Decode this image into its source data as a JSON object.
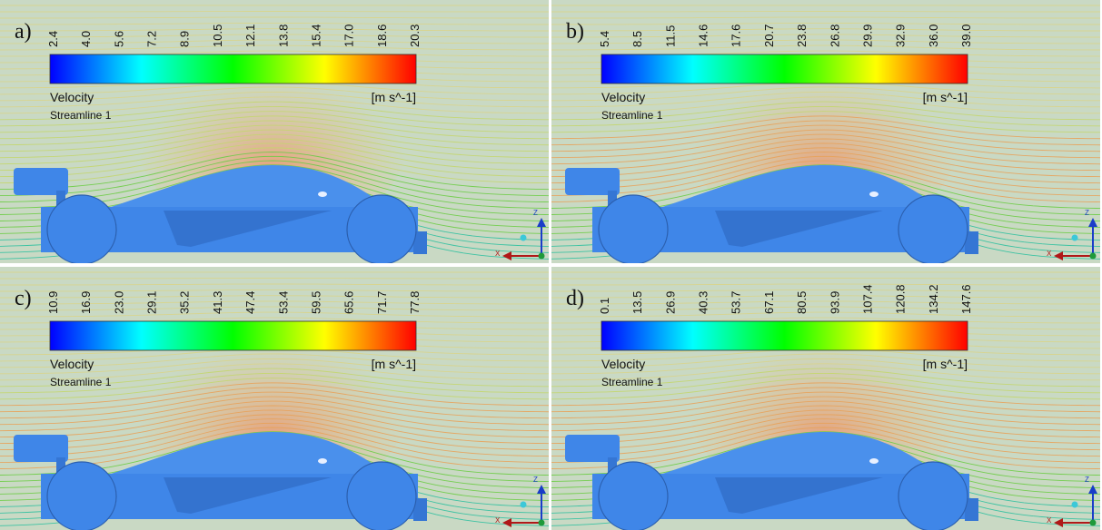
{
  "panels": [
    {
      "label": "a)",
      "ticks": [
        "2.4",
        "4.0",
        "5.6",
        "7.2",
        "8.9",
        "10.5",
        "12.1",
        "13.8",
        "15.4",
        "17.0",
        "18.6",
        "20.3"
      ],
      "legend_title": "Velocity",
      "unit": "[m s^-1]",
      "streamline": "Streamline 1",
      "triad": {
        "z": "Z",
        "x": "X"
      }
    },
    {
      "label": "b)",
      "ticks": [
        "5.4",
        "8.5",
        "11.5",
        "14.6",
        "17.6",
        "20.7",
        "23.8",
        "26.8",
        "29.9",
        "32.9",
        "36.0",
        "39.0"
      ],
      "legend_title": "Velocity",
      "unit": "[m s^-1]",
      "streamline": "Streamline 1",
      "triad": {
        "z": "Z",
        "x": "X"
      }
    },
    {
      "label": "c)",
      "ticks": [
        "10.9",
        "16.9",
        "23.0",
        "29.1",
        "35.2",
        "41.3",
        "47.4",
        "53.4",
        "59.5",
        "65.6",
        "71.7",
        "77.8"
      ],
      "legend_title": "Velocity",
      "unit": "[m s^-1]",
      "streamline": "Streamline 1",
      "triad": {
        "z": "Z",
        "x": "X"
      }
    },
    {
      "label": "d)",
      "ticks": [
        "0.1",
        "13.5",
        "26.9",
        "40.3",
        "53.7",
        "67.1",
        "80.5",
        "93.9",
        "107.4",
        "120.8",
        "134.2",
        "147.6"
      ],
      "legend_title": "Velocity",
      "unit": "[m s^-1]",
      "streamline": "Streamline 1",
      "triad": {
        "z": "Z",
        "x": "X"
      }
    }
  ]
}
